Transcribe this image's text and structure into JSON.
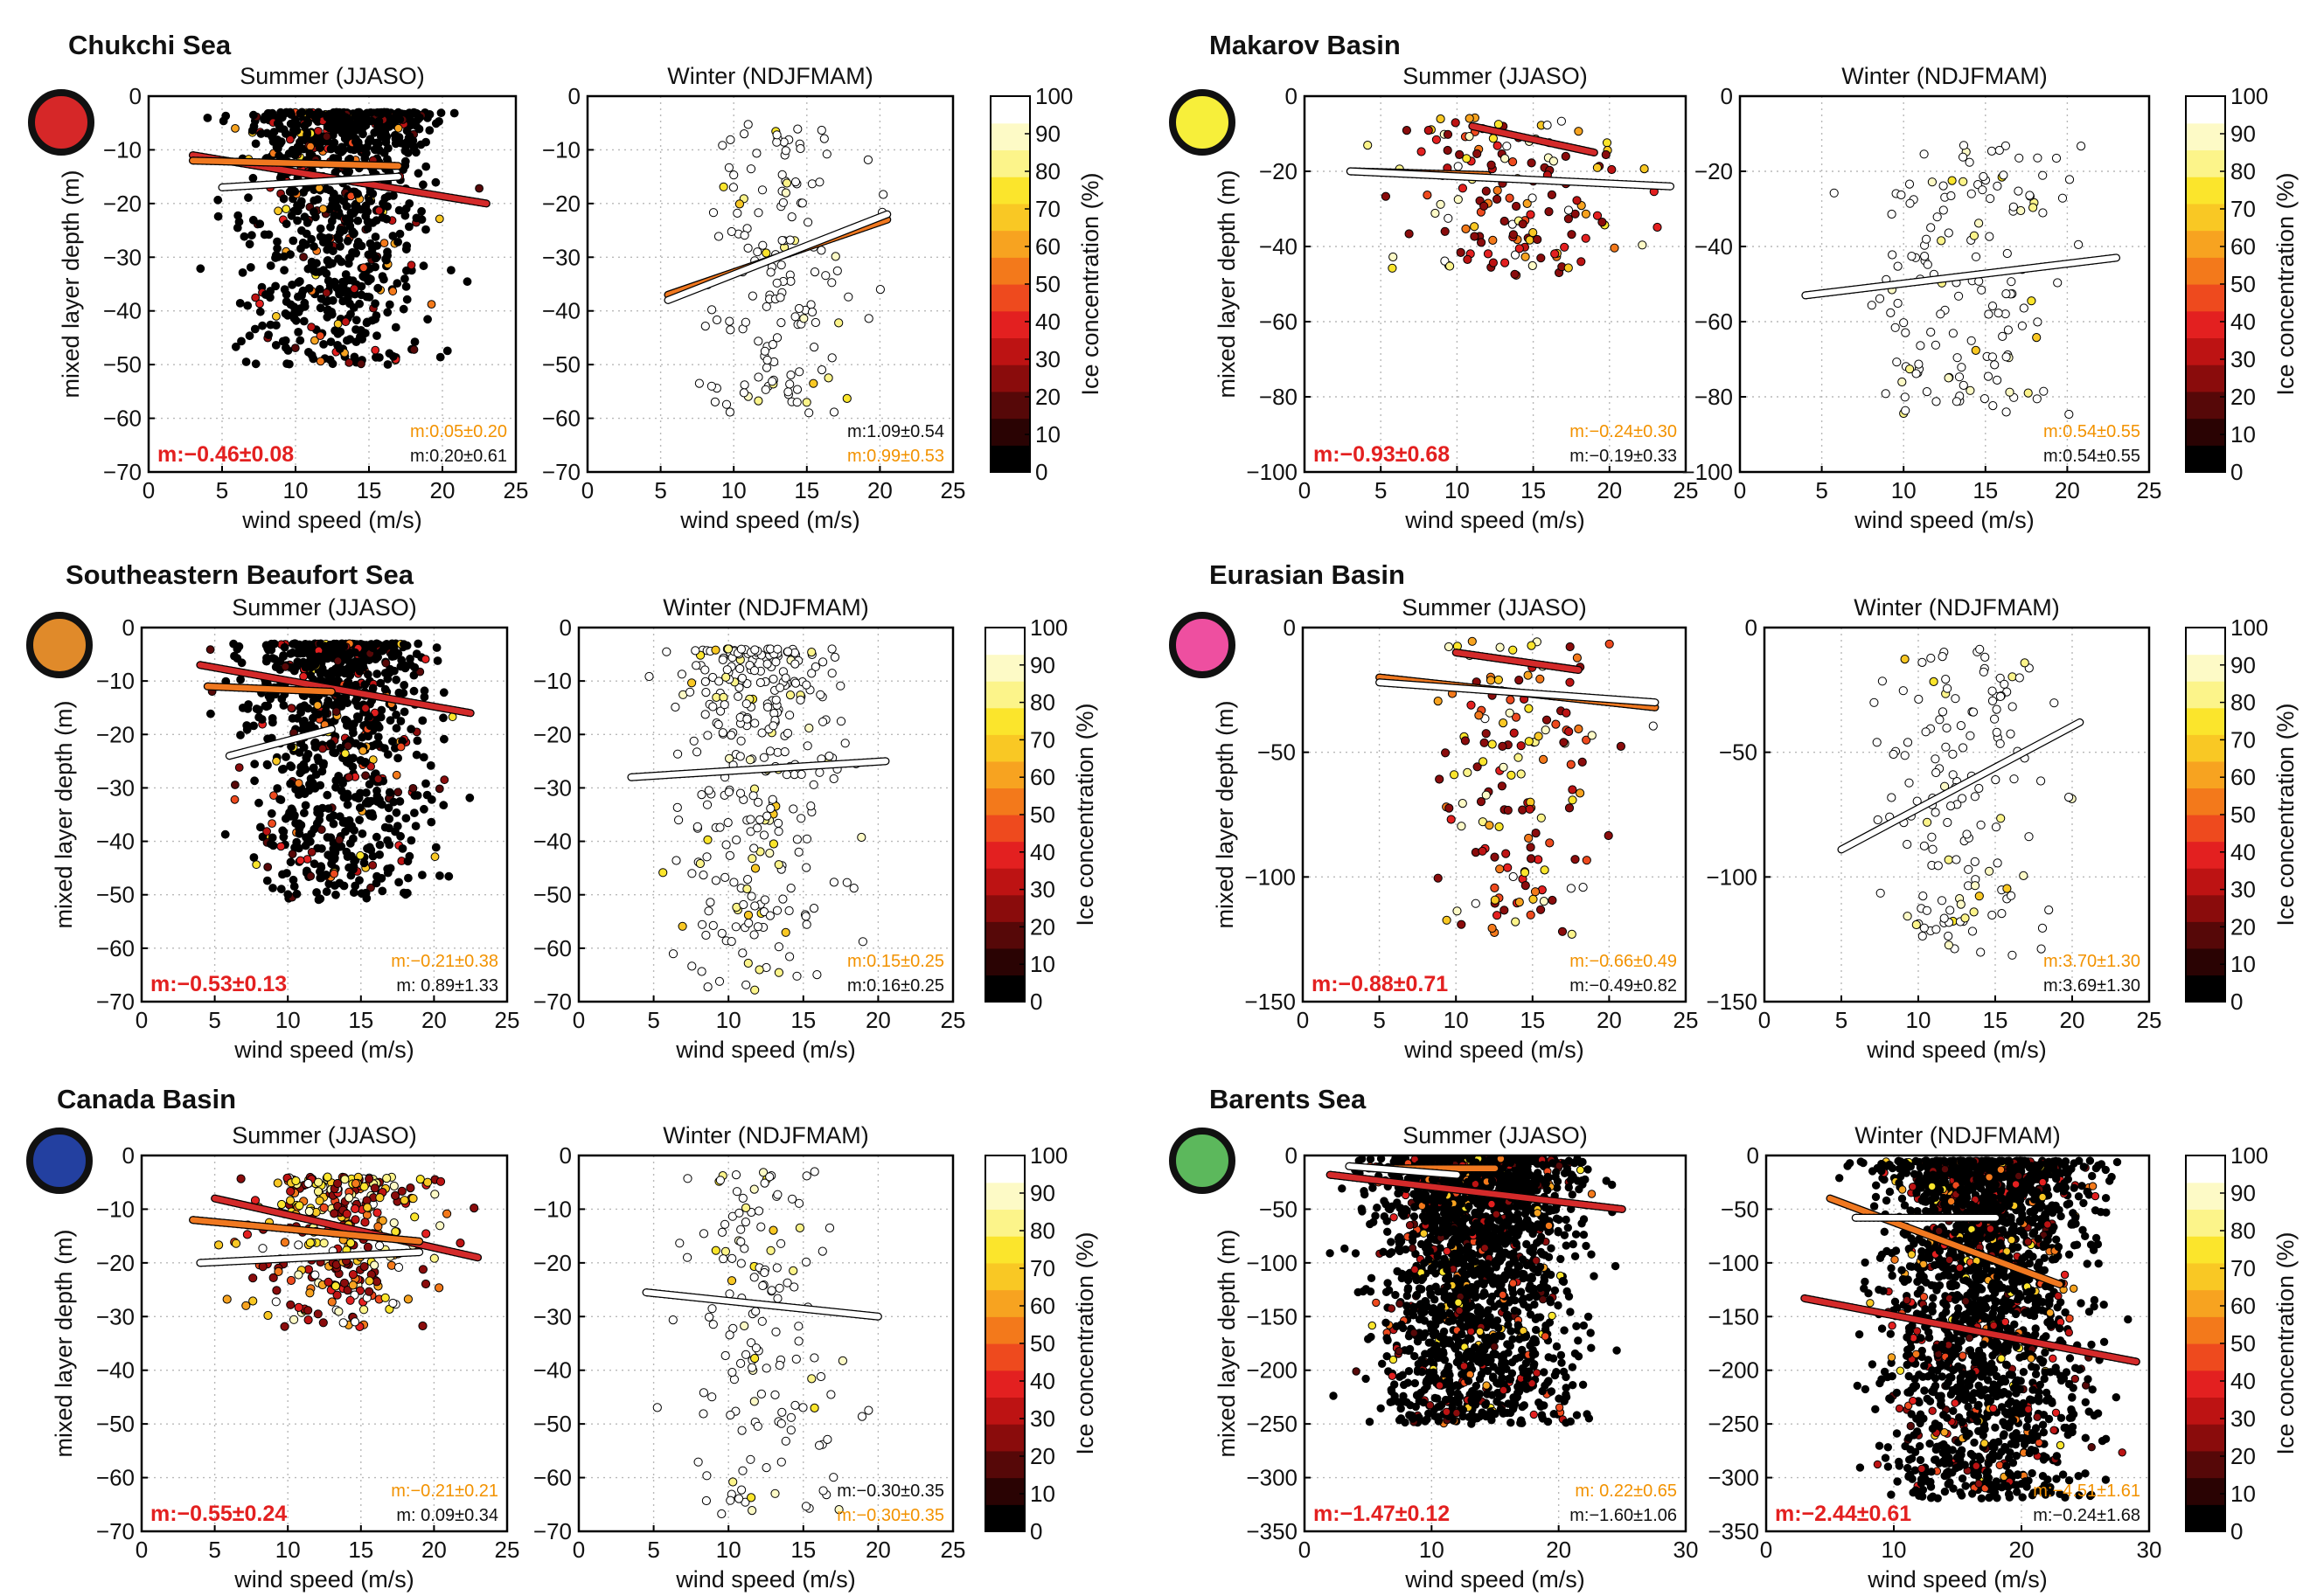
{
  "colorbar": {
    "label": "Ice concentration (%)",
    "ticks": [
      "0",
      "10",
      "20",
      "30",
      "40",
      "50",
      "60",
      "70",
      "80",
      "90",
      "100"
    ],
    "colors": [
      "#000000",
      "#2a0303",
      "#560808",
      "#8a0c0c",
      "#bd1313",
      "#e32020",
      "#ee4a1e",
      "#f3791b",
      "#f7a320",
      "#f9c824",
      "#fbe52c",
      "#fcf48a",
      "#fdfac6",
      "#ffffff"
    ]
  },
  "colors": {
    "red_fit": "#d42a2a",
    "orange_fit": "#f07820",
    "white_fit": "#ffffff",
    "slope_red": "#e32020",
    "slope_orange": "#f29200",
    "slope_black": "#111111"
  },
  "regions": [
    {
      "title": "Chukchi Sea",
      "marker_color": "#d62728",
      "panels": [
        {
          "subtitle": "Summer (JJASO)",
          "ylabel": "mixed layer depth (m)",
          "xlabel": "wind speed (m/s)",
          "main_slope": "m:−0.46±0.08",
          "slope_orange": "m:0.05±0.20",
          "slope_black": "m:0.20±0.61"
        },
        {
          "subtitle": "Winter (NDJFMAM)",
          "ylabel": "",
          "xlabel": "wind speed (m/s)",
          "main_slope": "",
          "slope_black": "m:1.09±0.54",
          "slope_orange": "m:0.99±0.53"
        }
      ]
    },
    {
      "title": "Makarov Basin",
      "marker_color": "#f7ef3a",
      "panels": [
        {
          "subtitle": "Summer (JJASO)",
          "ylabel": "mixed layer depth (m)",
          "xlabel": "wind speed (m/s)",
          "main_slope": "m:−0.93±0.68",
          "slope_orange": "m:−0.24±0.30",
          "slope_black": "m:−0.19±0.33"
        },
        {
          "subtitle": "Winter (NDJFMAM)",
          "ylabel": "",
          "xlabel": "wind speed (m/s)",
          "main_slope": "",
          "slope_orange": "m:0.54±0.55",
          "slope_black": "m:0.54±0.55"
        }
      ]
    },
    {
      "title": "Southeastern Beaufort Sea",
      "marker_color": "#e08a2a",
      "panels": [
        {
          "subtitle": "Summer (JJASO)",
          "ylabel": "mixed layer depth (m)",
          "xlabel": "wind speed (m/s)",
          "main_slope": "m:−0.53±0.13",
          "slope_orange": "m:−0.21±0.38",
          "slope_black": "m:  0.89±1.33"
        },
        {
          "subtitle": "Winter (NDJFMAM)",
          "ylabel": "",
          "xlabel": "wind speed (m/s)",
          "main_slope": "",
          "slope_orange": "m:0.15±0.25",
          "slope_black": "m:0.16±0.25"
        }
      ]
    },
    {
      "title": "Eurasian Basin",
      "marker_color": "#ee4fa0",
      "panels": [
        {
          "subtitle": "Summer (JJASO)",
          "ylabel": "mixed layer depth (m)",
          "xlabel": "wind speed (m/s)",
          "main_slope": "m:−0.88±0.71",
          "slope_orange": "m:−0.66±0.49",
          "slope_black": "m:−0.49±0.82"
        },
        {
          "subtitle": "Winter (NDJFMAM)",
          "ylabel": "",
          "xlabel": "wind speed (m/s)",
          "main_slope": "",
          "slope_orange": "m:3.70±1.30",
          "slope_black": "m:3.69±1.30"
        }
      ]
    },
    {
      "title": "Canada Basin",
      "marker_color": "#2340a0",
      "panels": [
        {
          "subtitle": "Summer (JJASO)",
          "ylabel": "mixed layer depth (m)",
          "xlabel": "wind speed (m/s)",
          "main_slope": "m:−0.55±0.24",
          "slope_orange": "m:−0.21±0.21",
          "slope_black": "m:  0.09±0.34"
        },
        {
          "subtitle": "Winter (NDJFMAM)",
          "ylabel": "",
          "xlabel": "wind speed (m/s)",
          "main_slope": "",
          "slope_black": "m:−0.30±0.35",
          "slope_orange": "m:−0.30±0.35"
        }
      ]
    },
    {
      "title": "Barents Sea",
      "marker_color": "#5cb85c",
      "panels": [
        {
          "subtitle": "Summer (JJASO)",
          "ylabel": "mixed layer depth (m)",
          "xlabel": "wind speed (m/s)",
          "main_slope": "m:−1.47±0.12",
          "slope_orange": "m:  0.22±0.65",
          "slope_black": "m:−1.60±1.06"
        },
        {
          "subtitle": "Winter (NDJFMAM)",
          "ylabel": "",
          "xlabel": "wind speed (m/s)",
          "main_slope": "m:−2.44±0.61",
          "slope_orange": "m:−4.51±1.61",
          "slope_black": "m:−0.24±1.68"
        }
      ]
    }
  ],
  "chart_data": [
    {
      "type": "scatter",
      "region": "Chukchi Sea",
      "season": "Summer (JJASO)",
      "xlim": [
        0,
        25
      ],
      "ylim": [
        -70,
        0
      ],
      "xticks": [
        0,
        5,
        10,
        15,
        20,
        25
      ],
      "yticks": [
        0,
        -10,
        -20,
        -30,
        -40,
        -50,
        -60,
        -70
      ],
      "xlabel": "wind speed (m/s)",
      "ylabel": "mixed layer depth (m)",
      "density": "dense",
      "cluster": {
        "x": [
          3,
          23
        ],
        "y": [
          -50,
          -3
        ]
      },
      "point_ice": "mostly 0–10%",
      "fits": [
        {
          "color": "red",
          "x": [
            3,
            23
          ],
          "y": [
            -11,
            -20
          ]
        },
        {
          "color": "orange",
          "x": [
            3,
            17
          ],
          "y": [
            -12,
            -13
          ]
        },
        {
          "color": "white",
          "x": [
            5,
            17
          ],
          "y": [
            -17,
            -15
          ]
        }
      ],
      "slopes": {
        "all": "m:−0.46±0.08",
        "orange": "m:0.05±0.20",
        "white": "m:0.20±0.61"
      }
    },
    {
      "type": "scatter",
      "region": "Chukchi Sea",
      "season": "Winter (NDJFMAM)",
      "xlim": [
        0,
        25
      ],
      "ylim": [
        -70,
        0
      ],
      "xticks": [
        0,
        5,
        10,
        15,
        20,
        25
      ],
      "yticks": [
        0,
        -10,
        -20,
        -30,
        -40,
        -50,
        -60,
        -70
      ],
      "xlabel": "wind speed (m/s)",
      "density": "sparse",
      "cluster": {
        "x": [
          5,
          21
        ],
        "y": [
          -60,
          -5
        ]
      },
      "point_ice": "mostly 80–100%",
      "fits": [
        {
          "color": "orange",
          "x": [
            5.5,
            20.5
          ],
          "y": [
            -37,
            -23
          ]
        },
        {
          "color": "white",
          "x": [
            5.5,
            20.5
          ],
          "y": [
            -38,
            -22
          ]
        }
      ],
      "slopes": {
        "white": "m:1.09±0.54",
        "orange": "m:0.99±0.53"
      }
    },
    {
      "type": "scatter",
      "region": "Makarov Basin",
      "season": "Summer (JJASO)",
      "xlim": [
        0,
        25
      ],
      "ylim": [
        -100,
        0
      ],
      "xticks": [
        0,
        5,
        10,
        15,
        20,
        25
      ],
      "yticks": [
        0,
        -20,
        -40,
        -60,
        -80,
        -100
      ],
      "xlabel": "wind speed (m/s)",
      "ylabel": "mixed layer depth (m)",
      "density": "sparse",
      "cluster": {
        "x": [
          3,
          24
        ],
        "y": [
          -48,
          -5
        ]
      },
      "point_ice": "mixed 30–100%",
      "fits": [
        {
          "color": "red",
          "x": [
            11,
            19
          ],
          "y": [
            -8,
            -15
          ]
        },
        {
          "color": "orange",
          "x": [
            3,
            12
          ],
          "y": [
            -20,
            -21
          ]
        },
        {
          "color": "white",
          "x": [
            3,
            24
          ],
          "y": [
            -20,
            -24
          ]
        }
      ],
      "slopes": {
        "all": "m:−0.93±0.68",
        "orange": "m:−0.24±0.30",
        "white": "m:−0.19±0.33"
      }
    },
    {
      "type": "scatter",
      "region": "Makarov Basin",
      "season": "Winter (NDJFMAM)",
      "xlim": [
        0,
        25
      ],
      "ylim": [
        -100,
        0
      ],
      "xticks": [
        0,
        5,
        10,
        15,
        20,
        25
      ],
      "yticks": [
        0,
        -20,
        -40,
        -60,
        -80,
        -100
      ],
      "xlabel": "wind speed (m/s)",
      "density": "sparse",
      "cluster": {
        "x": [
          4,
          23
        ],
        "y": [
          -85,
          -12
        ]
      },
      "point_ice": "mostly 100%",
      "fits": [
        {
          "color": "white",
          "x": [
            4,
            23
          ],
          "y": [
            -53,
            -43
          ]
        }
      ],
      "slopes": {
        "orange": "m:0.54±0.55",
        "white": "m:0.54±0.55"
      }
    },
    {
      "type": "scatter",
      "region": "Southeastern Beaufort Sea",
      "season": "Summer (JJASO)",
      "xlim": [
        0,
        25
      ],
      "ylim": [
        -70,
        0
      ],
      "xticks": [
        0,
        5,
        10,
        15,
        20,
        25
      ],
      "yticks": [
        0,
        -10,
        -20,
        -30,
        -40,
        -50,
        -60,
        -70
      ],
      "xlabel": "wind speed (m/s)",
      "ylabel": "mixed layer depth (m)",
      "density": "dense",
      "cluster": {
        "x": [
          4,
          23
        ],
        "y": [
          -51,
          -3
        ]
      },
      "point_ice": "mostly 0–10%",
      "fits": [
        {
          "color": "red",
          "x": [
            4,
            22.5
          ],
          "y": [
            -7,
            -16
          ]
        },
        {
          "color": "orange",
          "x": [
            4.5,
            13
          ],
          "y": [
            -11,
            -12
          ]
        },
        {
          "color": "white",
          "x": [
            6,
            13
          ],
          "y": [
            -24,
            -19
          ]
        }
      ],
      "slopes": {
        "all": "m:−0.53±0.13",
        "orange": "m:−0.21±0.38",
        "white": "m:  0.89±1.33"
      }
    },
    {
      "type": "scatter",
      "region": "Southeastern Beaufort Sea",
      "season": "Winter (NDJFMAM)",
      "xlim": [
        0,
        25
      ],
      "ylim": [
        -70,
        0
      ],
      "xticks": [
        0,
        5,
        10,
        15,
        20,
        25
      ],
      "yticks": [
        0,
        -10,
        -20,
        -30,
        -40,
        -50,
        -60,
        -70
      ],
      "xlabel": "wind speed (m/s)",
      "density": "medium",
      "cluster": {
        "x": [
          3,
          21
        ],
        "y": [
          -68,
          -4
        ]
      },
      "point_ice": "mostly 90–100%",
      "fits": [
        {
          "color": "white",
          "x": [
            3.5,
            20.5
          ],
          "y": [
            -28,
            -25
          ]
        }
      ],
      "slopes": {
        "orange": "m:0.15±0.25",
        "white": "m:0.16±0.25"
      }
    },
    {
      "type": "scatter",
      "region": "Eurasian Basin",
      "season": "Summer (JJASO)",
      "xlim": [
        0,
        25
      ],
      "ylim": [
        -150,
        0
      ],
      "xticks": [
        0,
        5,
        10,
        15,
        20,
        25
      ],
      "yticks": [
        0,
        -50,
        -100,
        -150
      ],
      "xlabel": "wind speed (m/s)",
      "ylabel": "mixed layer depth (m)",
      "density": "sparse",
      "cluster": {
        "x": [
          5,
          23
        ],
        "y": [
          -125,
          -5
        ]
      },
      "point_ice": "mixed 50–100%",
      "fits": [
        {
          "color": "red",
          "x": [
            10,
            18
          ],
          "y": [
            -10,
            -17
          ]
        },
        {
          "color": "orange",
          "x": [
            5,
            23
          ],
          "y": [
            -20,
            -32
          ]
        },
        {
          "color": "white",
          "x": [
            5,
            23
          ],
          "y": [
            -22,
            -30
          ]
        }
      ],
      "slopes": {
        "all": "m:−0.88±0.71",
        "orange": "m:−0.66±0.49",
        "white": "m:−0.49±0.82"
      }
    },
    {
      "type": "scatter",
      "region": "Eurasian Basin",
      "season": "Winter (NDJFMAM)",
      "xlim": [
        0,
        25
      ],
      "ylim": [
        -150,
        0
      ],
      "xticks": [
        0,
        5,
        10,
        15,
        20,
        25
      ],
      "yticks": [
        0,
        -50,
        -100,
        -150
      ],
      "xlabel": "wind speed (m/s)",
      "density": "sparse",
      "cluster": {
        "x": [
          5,
          21
        ],
        "y": [
          -133,
          -8
        ]
      },
      "point_ice": "mostly 100%",
      "fits": [
        {
          "color": "white",
          "x": [
            5,
            20.5
          ],
          "y": [
            -89,
            -38
          ]
        }
      ],
      "slopes": {
        "orange": "m:3.70±1.30",
        "white": "m:3.69±1.30"
      }
    },
    {
      "type": "scatter",
      "region": "Canada Basin",
      "season": "Summer (JJASO)",
      "xlim": [
        0,
        25
      ],
      "ylim": [
        -70,
        0
      ],
      "xticks": [
        0,
        5,
        10,
        15,
        20,
        25
      ],
      "yticks": [
        0,
        -10,
        -20,
        -30,
        -40,
        -50,
        -60,
        -70
      ],
      "xlabel": "wind speed (m/s)",
      "ylabel": "mixed layer depth (m)",
      "density": "medium",
      "cluster": {
        "x": [
          4,
          23.5
        ],
        "y": [
          -32,
          -4
        ]
      },
      "point_ice": "mixed 10–100%",
      "fits": [
        {
          "color": "red",
          "x": [
            5,
            23
          ],
          "y": [
            -8,
            -19
          ]
        },
        {
          "color": "orange",
          "x": [
            3.5,
            19
          ],
          "y": [
            -12,
            -16
          ]
        },
        {
          "color": "white",
          "x": [
            4,
            19
          ],
          "y": [
            -20,
            -18
          ]
        }
      ],
      "slopes": {
        "all": "m:−0.55±0.24",
        "orange": "m:−0.21±0.21",
        "white": "m:  0.09±0.34"
      }
    },
    {
      "type": "scatter",
      "region": "Canada Basin",
      "season": "Winter (NDJFMAM)",
      "xlim": [
        0,
        25
      ],
      "ylim": [
        -70,
        0
      ],
      "xticks": [
        0,
        5,
        10,
        15,
        20,
        25
      ],
      "yticks": [
        0,
        -10,
        -20,
        -30,
        -40,
        -50,
        -60,
        -70
      ],
      "xlabel": "wind speed (m/s)",
      "density": "sparse",
      "cluster": {
        "x": [
          4.5,
          20
        ],
        "y": [
          -67,
          -3
        ]
      },
      "point_ice": "mostly 100%",
      "fits": [
        {
          "color": "white",
          "x": [
            4.5,
            20
          ],
          "y": [
            -25.5,
            -30
          ]
        }
      ],
      "slopes": {
        "white": "m:−0.30±0.35",
        "orange": "m:−0.30±0.35"
      }
    },
    {
      "type": "scatter",
      "region": "Barents Sea",
      "season": "Summer (JJASO)",
      "xlim": [
        0,
        30
      ],
      "ylim": [
        -350,
        0
      ],
      "xticks": [
        0,
        10,
        20,
        30
      ],
      "yticks": [
        0,
        -50,
        -100,
        -150,
        -200,
        -250,
        -300,
        -350
      ],
      "xlabel": "wind speed (m/s)",
      "ylabel": "mixed layer depth (m)",
      "density": "very dense",
      "cluster": {
        "x": [
          2,
          25
        ],
        "y": [
          -250,
          -3
        ]
      },
      "point_ice": "mostly 0%",
      "fits": [
        {
          "color": "red",
          "x": [
            2,
            25
          ],
          "y": [
            -18,
            -50
          ]
        },
        {
          "color": "orange",
          "x": [
            5,
            15
          ],
          "y": [
            -12,
            -12
          ]
        },
        {
          "color": "white",
          "x": [
            3.5,
            12
          ],
          "y": [
            -10,
            -18
          ]
        }
      ],
      "slopes": {
        "all": "m:−1.47±0.12",
        "orange": "m:  0.22±0.65",
        "white": "m:−1.60±1.06"
      }
    },
    {
      "type": "scatter",
      "region": "Barents Sea",
      "season": "Winter (NDJFMAM)",
      "xlim": [
        0,
        30
      ],
      "ylim": [
        -350,
        0
      ],
      "xticks": [
        0,
        10,
        20,
        30
      ],
      "yticks": [
        0,
        -50,
        -100,
        -150,
        -200,
        -250,
        -300,
        -350
      ],
      "xlabel": "wind speed (m/s)",
      "density": "very dense",
      "cluster": {
        "x": [
          5,
          29
        ],
        "y": [
          -320,
          -5
        ]
      },
      "point_ice": "mostly 0%",
      "fits": [
        {
          "color": "red",
          "x": [
            3,
            29
          ],
          "y": [
            -133,
            -192
          ]
        },
        {
          "color": "orange",
          "x": [
            5,
            23
          ],
          "y": [
            -40,
            -120
          ]
        },
        {
          "color": "white",
          "x": [
            7,
            18
          ],
          "y": [
            -58,
            -58
          ]
        }
      ],
      "slopes": {
        "all": "m:−2.44±0.61",
        "orange": "m:−4.51±1.61",
        "white": "m:−0.24±1.68"
      }
    }
  ]
}
